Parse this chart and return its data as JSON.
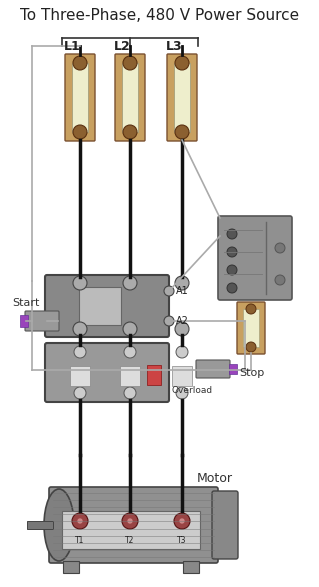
{
  "title": "To Three-Phase, 480 V Power Source",
  "title_fontsize": 11,
  "bg_color": "#ffffff",
  "fuse_color": "#c8a060",
  "fuse_labels": [
    "L1",
    "L2",
    "L3"
  ],
  "wire_color": "#111111",
  "ctrl_wire_color": "#aaaaaa",
  "purple_color": "#9944bb",
  "gray_dark": "#666666",
  "gray_med": "#888888",
  "gray_light": "#aaaaaa",
  "gray_box": "#999999",
  "bracket_color": "#333333",
  "start_label": "Start",
  "stop_label": "Stop",
  "motor_label": "Motor",
  "overload_label": "Overload",
  "a1_label": "A1",
  "a2_label": "A2",
  "t_labels": [
    "T1",
    "T2",
    "T3"
  ]
}
